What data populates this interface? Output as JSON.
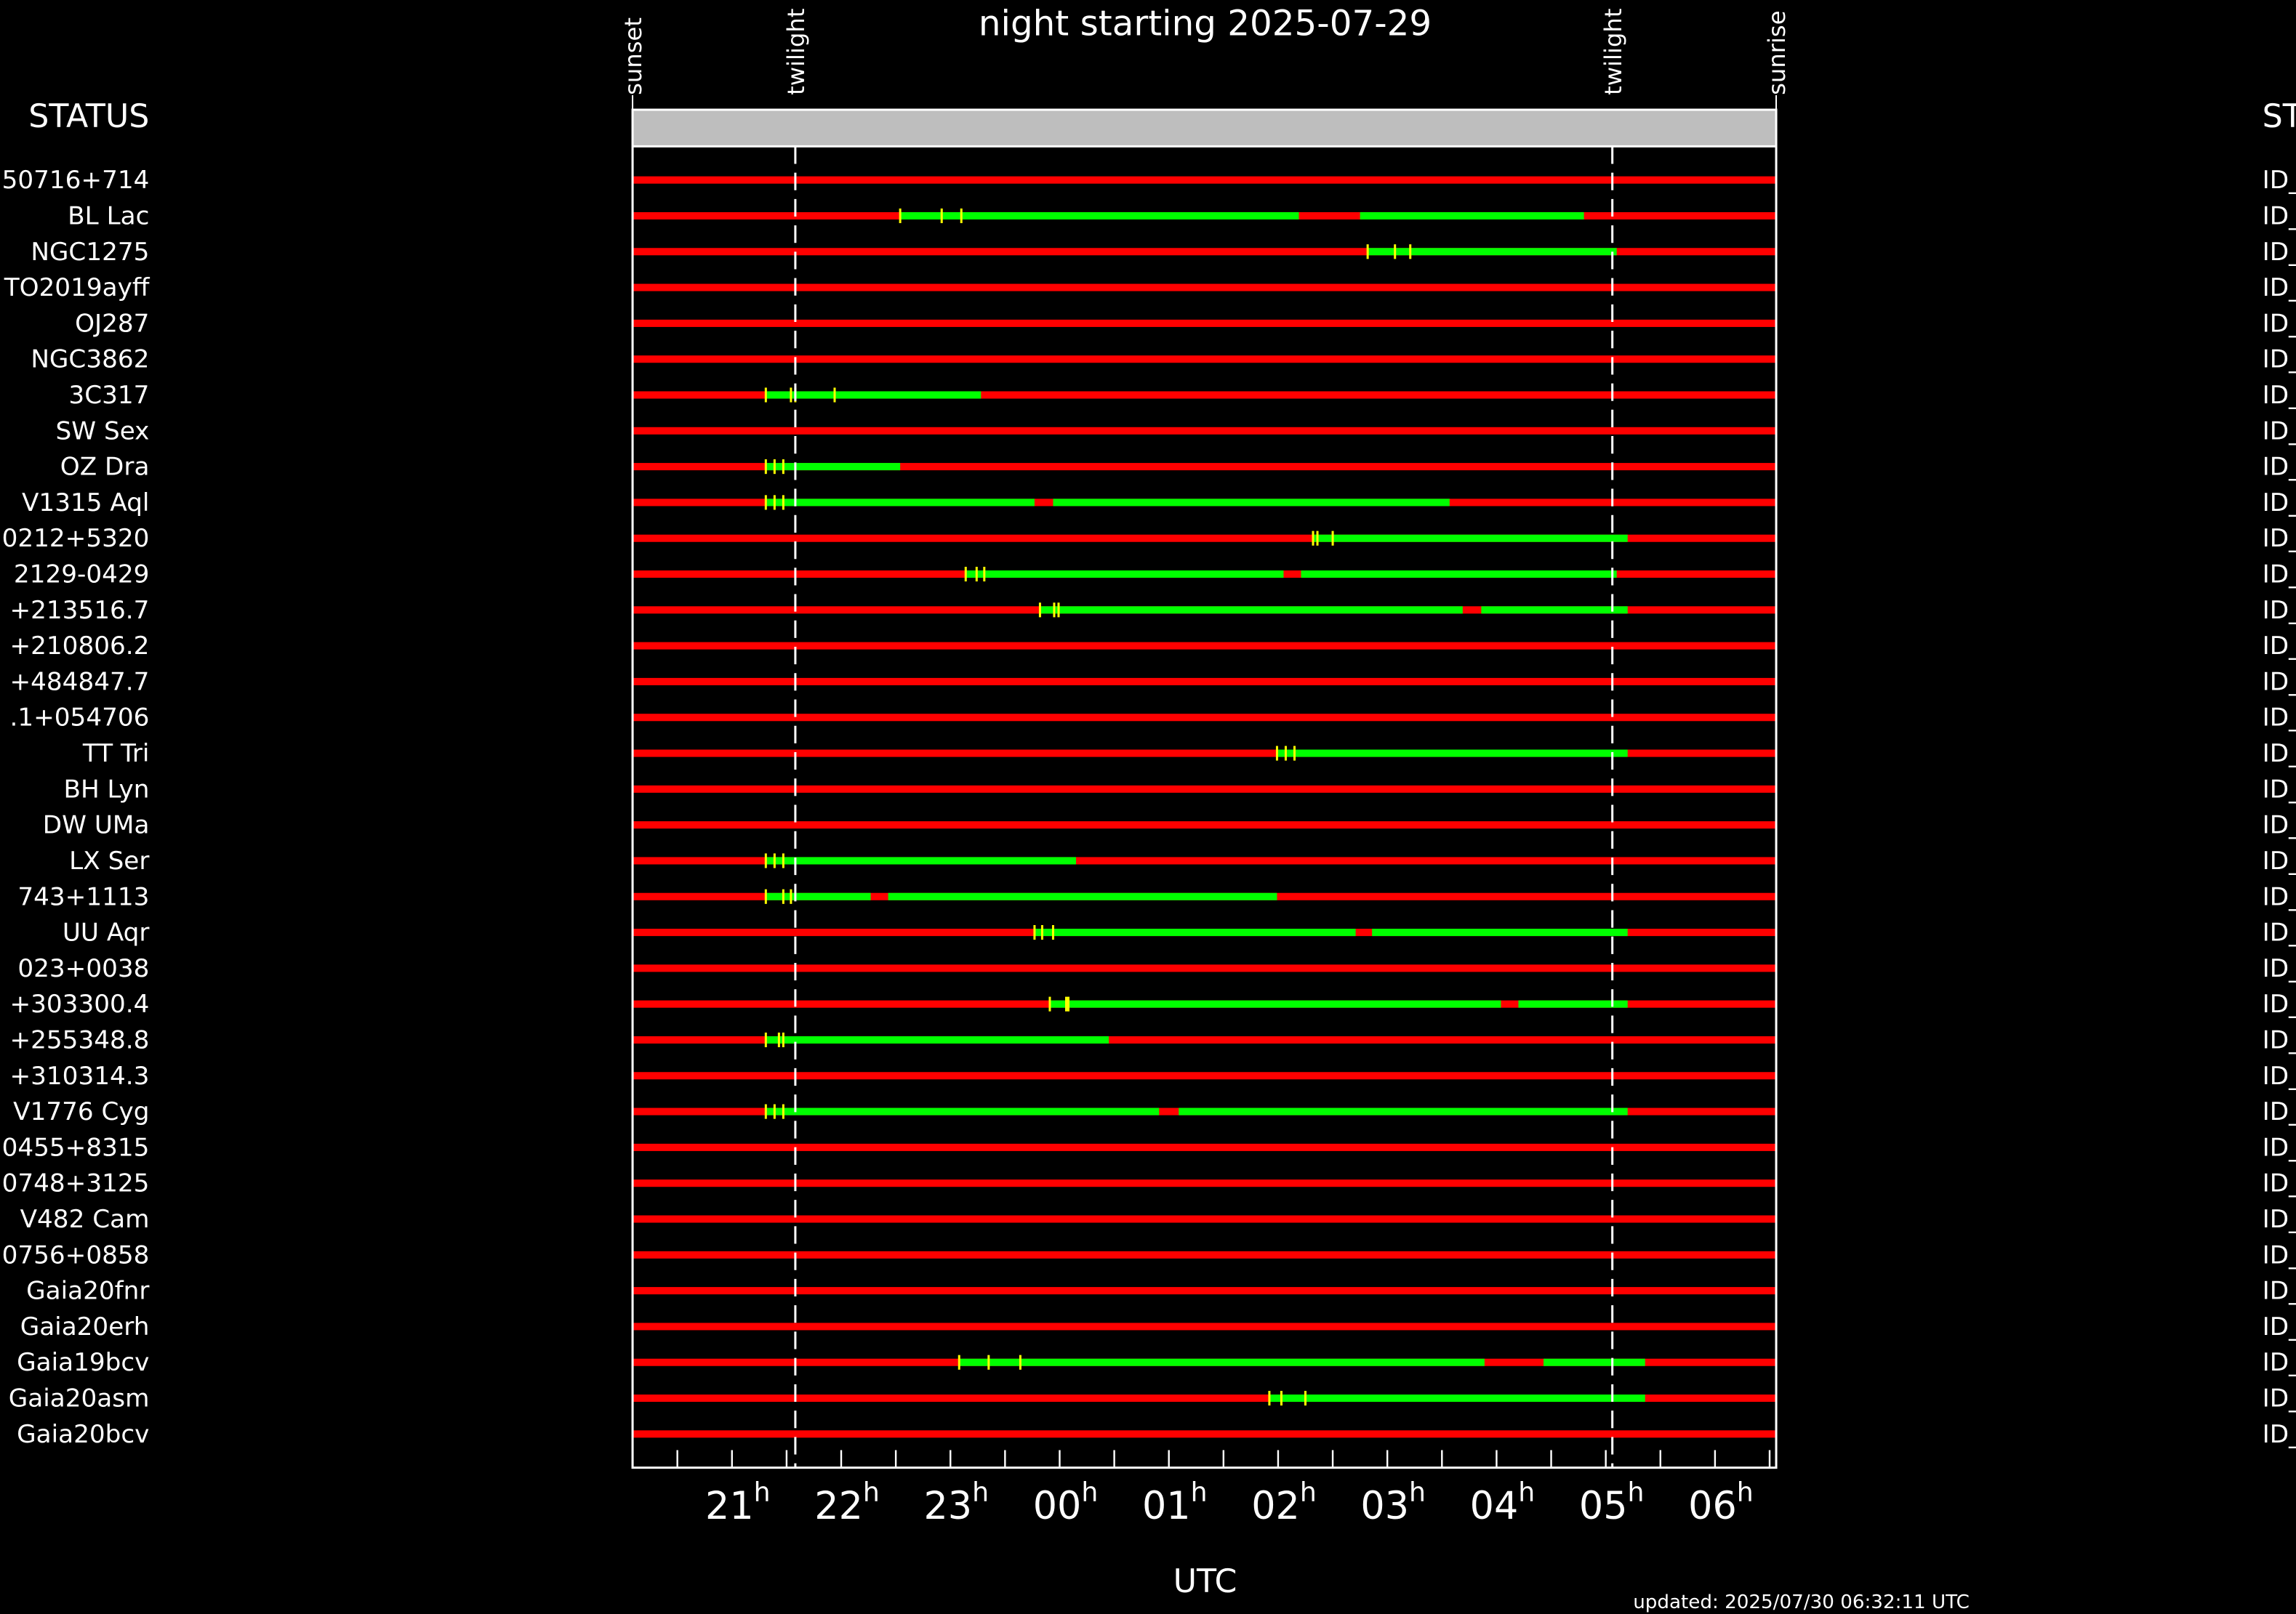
{
  "chart_data": {
    "type": "timeline",
    "title": "night starting 2025-07-29",
    "x_label": "UTC",
    "x_unit": "h",
    "footer": "updated: 2025/07/30 06:32:11 UTC",
    "left_header": "STATUS",
    "right_header": "ST",
    "xlim": [
      20.09,
      30.56
    ],
    "xticks": [
      21,
      22,
      23,
      {
        "value": 24,
        "label": "00"
      },
      {
        "value": 25,
        "label": "01"
      },
      {
        "value": 26,
        "label": "02"
      },
      {
        "value": 27,
        "label": "03"
      },
      {
        "value": 28,
        "label": "04"
      },
      {
        "value": 29,
        "label": "05"
      },
      {
        "value": 30,
        "label": "06"
      }
    ],
    "xminorticks": [
      20.5,
      21.5,
      22.5,
      23.5,
      24.5,
      25.5,
      26.5,
      27.5,
      28.5,
      29.5,
      30.5
    ],
    "events": [
      {
        "label": "sunset",
        "value": 20.09,
        "dashed": false
      },
      {
        "label": "twilight",
        "value": 21.58,
        "dashed": true
      },
      {
        "label": "twilight",
        "value": 29.06,
        "dashed": true
      },
      {
        "label": "sunrise",
        "value": 30.56,
        "dashed": false
      }
    ],
    "colors": {
      "unavailable": "#ff0000",
      "available": "#00ff00",
      "marker": "#ffff00",
      "header_bar": "#bebebe"
    },
    "rows": [
      {
        "name": "50716+714",
        "status": "ID_",
        "green": [],
        "markers": []
      },
      {
        "name": "BL Lac",
        "status": "ID_",
        "green": [
          [
            22.54,
            26.19
          ],
          [
            26.75,
            28.8
          ]
        ],
        "markers": [
          22.54,
          22.92,
          23.1
        ]
      },
      {
        "name": "NGC1275",
        "status": "ID_",
        "green": [
          [
            26.82,
            29.1
          ]
        ],
        "markers": [
          26.82,
          27.07,
          27.21
        ]
      },
      {
        "name": "TO2019ayff",
        "status": "ID_",
        "green": [],
        "markers": []
      },
      {
        "name": "OJ287",
        "status": "ID_",
        "green": [],
        "markers": []
      },
      {
        "name": "NGC3862",
        "status": "ID_",
        "green": [],
        "markers": []
      },
      {
        "name": "3C317",
        "status": "ID_",
        "green": [
          [
            21.31,
            23.28
          ]
        ],
        "markers": [
          21.31,
          21.54,
          21.58,
          21.94
        ]
      },
      {
        "name": "SW Sex",
        "status": "ID_",
        "green": [],
        "markers": []
      },
      {
        "name": "OZ Dra",
        "status": "ID_",
        "green": [
          [
            21.31,
            22.54
          ]
        ],
        "markers": [
          21.31,
          21.39,
          21.47
        ]
      },
      {
        "name": "V1315 Aql",
        "status": "ID_",
        "green": [
          [
            21.31,
            23.77
          ],
          [
            23.94,
            27.57
          ]
        ],
        "markers": [
          21.31,
          21.39,
          21.47
        ]
      },
      {
        "name": "0212+5320",
        "status": "ID_",
        "green": [
          [
            26.32,
            29.2
          ]
        ],
        "markers": [
          26.32,
          26.36,
          26.5
        ]
      },
      {
        "name": "2129-0429",
        "status": "ID_",
        "green": [
          [
            23.14,
            26.05
          ],
          [
            26.21,
            29.1
          ]
        ],
        "markers": [
          23.14,
          23.24,
          23.31
        ]
      },
      {
        "name": "+213516.7",
        "status": "ID_",
        "green": [
          [
            23.82,
            27.69
          ],
          [
            27.86,
            29.2
          ]
        ],
        "markers": [
          23.82,
          23.95,
          23.99
        ]
      },
      {
        "name": "+210806.2",
        "status": "ID_",
        "green": [],
        "markers": []
      },
      {
        "name": "+484847.7",
        "status": "ID_",
        "green": [],
        "markers": []
      },
      {
        "name": ".1+054706",
        "status": "ID_",
        "green": [],
        "markers": []
      },
      {
        "name": "TT Tri",
        "status": "ID_",
        "green": [
          [
            25.99,
            29.2
          ]
        ],
        "markers": [
          25.99,
          26.07,
          26.15
        ]
      },
      {
        "name": "BH Lyn",
        "status": "ID_",
        "green": [],
        "markers": []
      },
      {
        "name": "DW UMa",
        "status": "ID_",
        "green": [],
        "markers": []
      },
      {
        "name": "LX Ser",
        "status": "ID_",
        "green": [
          [
            21.31,
            24.15
          ]
        ],
        "markers": [
          21.31,
          21.39,
          21.47
        ]
      },
      {
        "name": "743+1113",
        "status": "ID_",
        "green": [
          [
            21.31,
            22.27
          ],
          [
            22.43,
            25.99
          ]
        ],
        "markers": [
          21.31,
          21.47,
          21.54
        ]
      },
      {
        "name": "UU Aqr",
        "status": "ID_",
        "green": [
          [
            23.77,
            26.71
          ],
          [
            26.86,
            29.2
          ]
        ],
        "markers": [
          23.77,
          23.84,
          23.94
        ]
      },
      {
        "name": "023+0038",
        "status": "ID_",
        "green": [],
        "markers": []
      },
      {
        "name": "+303300.4",
        "status": "ID_",
        "green": [
          [
            23.91,
            28.04
          ],
          [
            28.2,
            29.2
          ]
        ],
        "markers": [
          23.91,
          24.06,
          24.08
        ]
      },
      {
        "name": "+255348.8",
        "status": "ID_",
        "green": [
          [
            21.31,
            24.45
          ]
        ],
        "markers": [
          21.31,
          21.43,
          21.47
        ]
      },
      {
        "name": "+310314.3",
        "status": "ID_",
        "green": [],
        "markers": []
      },
      {
        "name": "V1776 Cyg",
        "status": "ID_",
        "green": [
          [
            21.31,
            24.91
          ],
          [
            25.09,
            29.2
          ]
        ],
        "markers": [
          21.31,
          21.39,
          21.47
        ]
      },
      {
        "name": "0455+8315",
        "status": "ID_",
        "green": [],
        "markers": []
      },
      {
        "name": "0748+3125",
        "status": "ID_",
        "green": [],
        "markers": []
      },
      {
        "name": "V482 Cam",
        "status": "ID_",
        "green": [],
        "markers": []
      },
      {
        "name": "0756+0858",
        "status": "ID_",
        "green": [],
        "markers": []
      },
      {
        "name": "Gaia20fnr",
        "status": "ID_",
        "green": [],
        "markers": []
      },
      {
        "name": "Gaia20erh",
        "status": "ID_",
        "green": [],
        "markers": []
      },
      {
        "name": "Gaia19bcv",
        "status": "ID_",
        "green": [
          [
            23.08,
            27.89
          ],
          [
            28.43,
            29.36
          ]
        ],
        "markers": [
          23.08,
          23.35,
          23.64
        ]
      },
      {
        "name": "Gaia20asm",
        "status": "ID_",
        "green": [
          [
            25.92,
            29.36
          ]
        ],
        "markers": [
          25.92,
          26.03,
          26.25
        ]
      },
      {
        "name": "Gaia20bcv",
        "status": "ID_",
        "green": [],
        "markers": []
      }
    ]
  }
}
